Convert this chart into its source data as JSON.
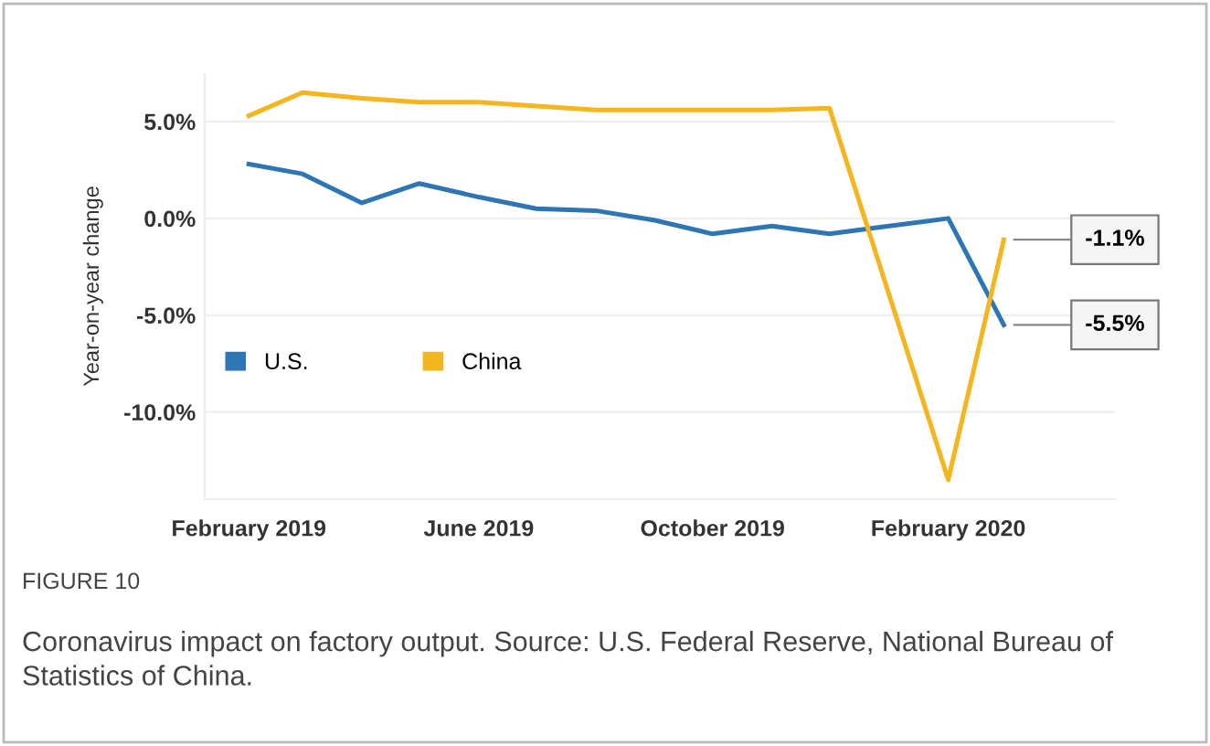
{
  "chart_data": {
    "type": "line",
    "ylabel": "Year-on-year change",
    "x": [
      "2019-02",
      "2019-03",
      "2019-04",
      "2019-05",
      "2019-06",
      "2019-07",
      "2019-08",
      "2019-09",
      "2019-10",
      "2019-11",
      "2019-12",
      "2020-01",
      "2020-02",
      "2020-03"
    ],
    "series": [
      {
        "name": "U.S.",
        "color": "#2e75b6",
        "values": [
          2.8,
          2.3,
          0.8,
          1.8,
          1.1,
          0.5,
          0.4,
          -0.1,
          -0.8,
          -0.4,
          -0.8,
          -0.4,
          0.0,
          -5.5
        ]
      },
      {
        "name": "China",
        "color": "#f5b51c",
        "x": [
          "2019-02",
          "2019-03",
          "2019-04",
          "2019-05",
          "2019-06",
          "2019-07",
          "2019-08",
          "2019-09",
          "2019-10",
          "2019-11",
          "2019-12",
          "2020-02",
          "2020-03"
        ],
        "values": [
          5.3,
          6.5,
          6.2,
          6.0,
          6.0,
          5.8,
          5.6,
          5.6,
          5.6,
          5.6,
          5.7,
          -13.5,
          -1.1
        ]
      }
    ],
    "xlim": [
      "2019-01-09",
      "2020-04-28"
    ],
    "xticks": [
      {
        "value": "2019-02",
        "label": "February 2019"
      },
      {
        "value": "2019-06",
        "label": "June 2019"
      },
      {
        "value": "2019-10",
        "label": "October 2019"
      },
      {
        "value": "2020-02",
        "label": "February 2020"
      }
    ],
    "ylim": [
      -14.5,
      7.5
    ],
    "yticks": [
      {
        "value": 5,
        "label": "5.0%"
      },
      {
        "value": 0,
        "label": "0.0%"
      },
      {
        "value": -5,
        "label": "-5.0%"
      },
      {
        "value": -10,
        "label": "-10.0%"
      }
    ],
    "grid": "y",
    "legend": "left",
    "marker": "none",
    "line_style": "solid",
    "annotations": [
      {
        "text": "-1.1%",
        "x": "2020-03",
        "y": -1.1
      },
      {
        "text": "-5.5%",
        "x": "2020-03",
        "y": -5.5
      },
      "FIGURE 10",
      "Coronavirus impact on factory output. Source: U.S. Federal Reserve, National Bureau of Statistics of China."
    ]
  }
}
